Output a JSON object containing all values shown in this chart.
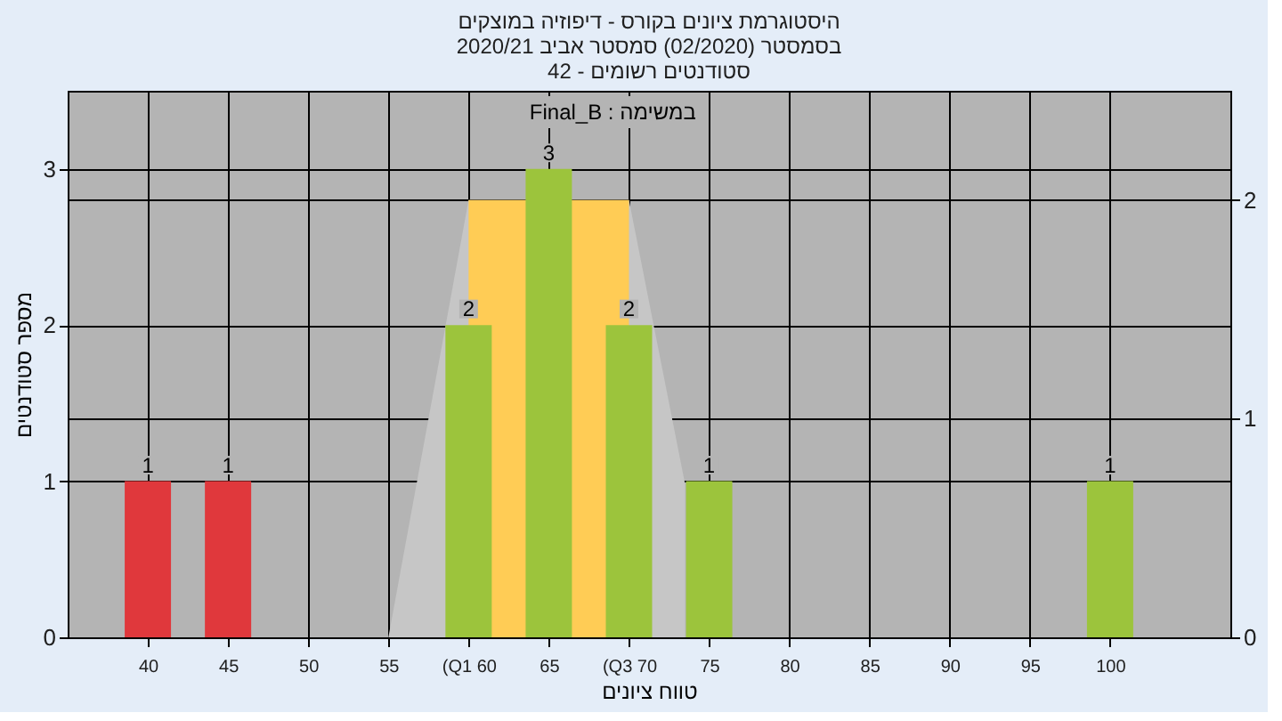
{
  "chart_data": {
    "type": "bar",
    "title": "היסטוגרמת ציונים בקורס - דיפוזיה במוצקים",
    "subtitle": "בסמסטר  (02/2020)  סמסטר אביב 2020/21\nסטודנטים רשומים - 42",
    "xlabel": "טווח ציונים",
    "ylabel": "מספר סטודנטים",
    "annotations": [
      "Final_B : במשימה"
    ],
    "xlim": [
      35,
      107.5
    ],
    "xticks": [
      40,
      45,
      50,
      55,
      {
        "value": 60,
        "label": "(Q1 60"
      },
      65,
      {
        "value": 70,
        "label": "(Q3 70"
      },
      75,
      80,
      85,
      90,
      95,
      100
    ],
    "ylim": [
      0,
      3.5
    ],
    "yticks": [
      0,
      1,
      2,
      3
    ],
    "y2lim": [
      0,
      2.5
    ],
    "y2ticks": [
      0,
      1,
      2
    ],
    "grid": true,
    "legend": false,
    "series": [
      {
        "x": [
          40,
          45,
          60,
          65,
          70,
          75,
          100
        ],
        "values": [
          1,
          1,
          2,
          3,
          2,
          1,
          1
        ],
        "value_labels": [
          "1",
          "1",
          "2",
          "3",
          "2",
          "1",
          "1"
        ],
        "colors": [
          "#e0383c",
          "#e0383c",
          "#9cc43c",
          "#9cc43c",
          "#9cc43c",
          "#9cc43c",
          "#9cc43c"
        ]
      },
      {
        "type": "area",
        "axis": "y2",
        "x": [
          55,
          60,
          70,
          73.5
        ],
        "values": [
          0,
          2,
          2,
          0.7
        ],
        "color": "#c6c6c6"
      },
      {
        "type": "area",
        "axis": "y2",
        "x": [
          60,
          70
        ],
        "values": [
          2,
          2
        ],
        "color": "#ffcc55"
      }
    ]
  }
}
